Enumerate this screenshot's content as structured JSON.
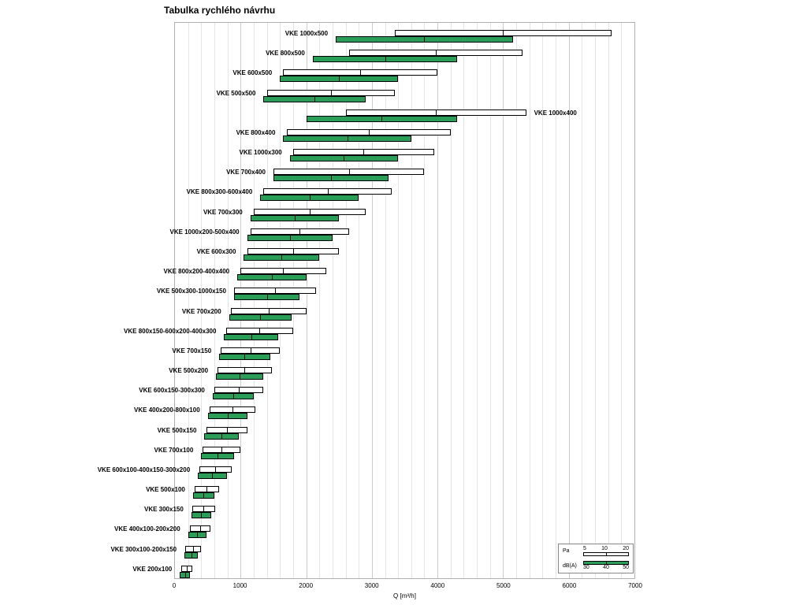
{
  "title": "Tabulka rychlého návrhu",
  "axis": {
    "x_max": 7000,
    "minor_step": 200,
    "major_step": 1000,
    "ticks": [
      "0",
      "1000",
      "2000",
      "3000",
      "4000",
      "5000",
      "6000",
      "7000"
    ],
    "xlabel": "Q [m³/h]"
  },
  "legend": {
    "pa_label": "Pa",
    "pa_ticks": [
      "5",
      "10",
      "20"
    ],
    "dba_label": "dB(A)",
    "dba_ticks": [
      "30",
      "40",
      "50"
    ]
  },
  "colors": {
    "green": "#2a9d57",
    "bar_border": "#000000",
    "grid_minor": "#e4e4e4",
    "grid_major": "#cccccc"
  },
  "chart_data": {
    "type": "bar",
    "orientation": "horizontal",
    "title": "Tabulka rychlého návrhu",
    "xlabel": "Q [m³/h]",
    "xlim": [
      0,
      7000
    ],
    "grid": true,
    "legend_position": "bottom-right",
    "rows": [
      {
        "label": "VKE 1000x500",
        "pa": [
          3350,
          6650
        ],
        "dba": [
          2450,
          5150
        ],
        "label_side": "left"
      },
      {
        "label": "VKE 800x500",
        "pa": [
          2650,
          5300
        ],
        "dba": [
          2100,
          4300
        ],
        "label_side": "left"
      },
      {
        "label": "VKE 600x500",
        "pa": [
          1650,
          4000
        ],
        "dba": [
          1600,
          3400
        ],
        "label_side": "left"
      },
      {
        "label": "VKE 500x500",
        "pa": [
          1400,
          3350
        ],
        "dba": [
          1350,
          2900
        ],
        "label_side": "left"
      },
      {
        "label": "VKE 1000x400",
        "pa": [
          2600,
          5350
        ],
        "dba": [
          2000,
          4300
        ],
        "label_side": "right"
      },
      {
        "label": "VKE 800x400",
        "pa": [
          1700,
          4200
        ],
        "dba": [
          1650,
          3600
        ],
        "label_side": "left"
      },
      {
        "label": "VKE 1000x300",
        "pa": [
          1800,
          3950
        ],
        "dba": [
          1750,
          3400
        ],
        "label_side": "left"
      },
      {
        "label": "VKE 700x400",
        "pa": [
          1500,
          3800
        ],
        "dba": [
          1500,
          3250
        ],
        "label_side": "left"
      },
      {
        "label": "VKE 800x300-600x400",
        "pa": [
          1350,
          3300
        ],
        "dba": [
          1300,
          2800
        ],
        "label_side": "left"
      },
      {
        "label": "VKE 700x300",
        "pa": [
          1200,
          2900
        ],
        "dba": [
          1150,
          2500
        ],
        "label_side": "left"
      },
      {
        "label": "VKE 1000x200-500x400",
        "pa": [
          1150,
          2650
        ],
        "dba": [
          1100,
          2400
        ],
        "label_side": "left"
      },
      {
        "label": "VKE 600x300",
        "pa": [
          1100,
          2500
        ],
        "dba": [
          1050,
          2200
        ],
        "label_side": "left"
      },
      {
        "label": "VKE 800x200-400x400",
        "pa": [
          1000,
          2300
        ],
        "dba": [
          950,
          2000
        ],
        "label_side": "left"
      },
      {
        "label": "VKE 500x300-1000x150",
        "pa": [
          900,
          2150
        ],
        "dba": [
          900,
          1900
        ],
        "label_side": "left"
      },
      {
        "label": "VKE 700x200",
        "pa": [
          850,
          2000
        ],
        "dba": [
          825,
          1775
        ],
        "label_side": "left"
      },
      {
        "label": "VKE 800x150-600x200-400x300",
        "pa": [
          775,
          1800
        ],
        "dba": [
          750,
          1575
        ],
        "label_side": "left"
      },
      {
        "label": "VKE 700x150",
        "pa": [
          700,
          1600
        ],
        "dba": [
          675,
          1450
        ],
        "label_side": "left"
      },
      {
        "label": "VKE 500x200",
        "pa": [
          650,
          1475
        ],
        "dba": [
          625,
          1350
        ],
        "label_side": "left"
      },
      {
        "label": "VKE 600x150-300x300",
        "pa": [
          600,
          1350
        ],
        "dba": [
          575,
          1200
        ],
        "label_side": "left"
      },
      {
        "label": "VKE 400x200-800x100",
        "pa": [
          525,
          1225
        ],
        "dba": [
          500,
          1100
        ],
        "label_side": "left"
      },
      {
        "label": "VKE 500x150",
        "pa": [
          475,
          1100
        ],
        "dba": [
          450,
          975
        ],
        "label_side": "left"
      },
      {
        "label": "VKE 700x100",
        "pa": [
          425,
          1000
        ],
        "dba": [
          400,
          900
        ],
        "label_side": "left"
      },
      {
        "label": "VKE 600x100-400x150-300x200",
        "pa": [
          375,
          860
        ],
        "dba": [
          350,
          790
        ],
        "label_side": "left"
      },
      {
        "label": "VKE 500x100",
        "pa": [
          300,
          670
        ],
        "dba": [
          275,
          600
        ],
        "label_side": "left"
      },
      {
        "label": "VKE 300x150",
        "pa": [
          265,
          610
        ],
        "dba": [
          250,
          550
        ],
        "label_side": "left"
      },
      {
        "label": "VKE 400x100-200x200",
        "pa": [
          230,
          540
        ],
        "dba": [
          200,
          480
        ],
        "label_side": "left"
      },
      {
        "label": "VKE 300x100-200x150",
        "pa": [
          155,
          395
        ],
        "dba": [
          145,
          350
        ],
        "label_side": "left"
      },
      {
        "label": "VKE 200x100",
        "pa": [
          100,
          265
        ],
        "dba": [
          75,
          230
        ],
        "label_side": "left"
      }
    ]
  }
}
